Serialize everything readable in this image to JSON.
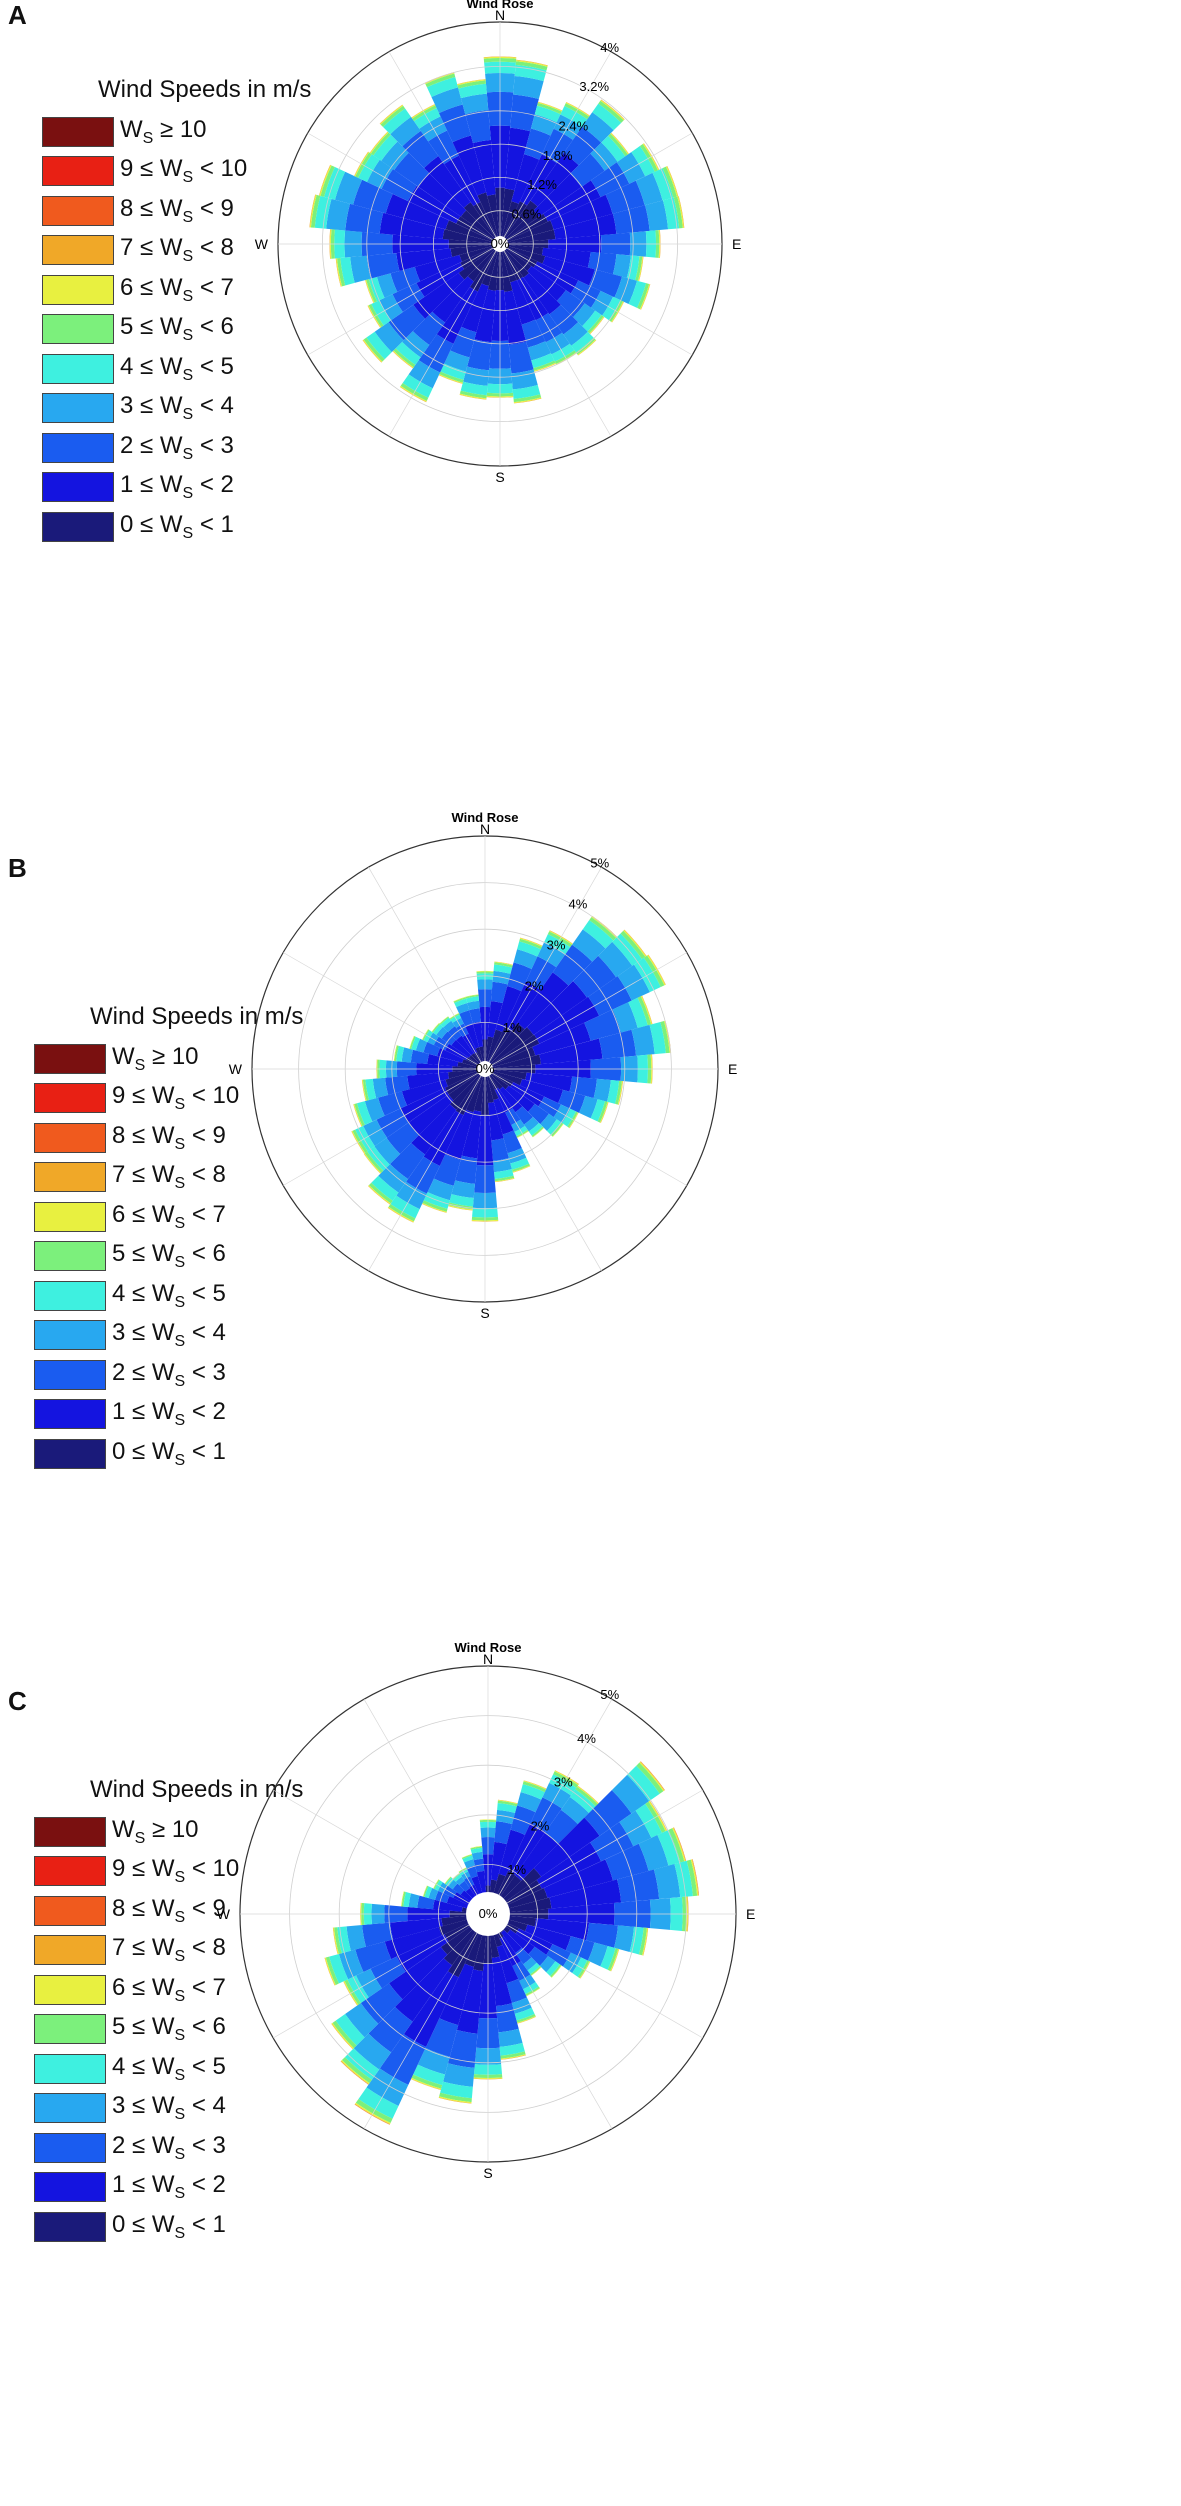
{
  "legend": {
    "title": "Wind Speeds in m/s",
    "colors": [
      "#1a1a7a",
      "#1414e0",
      "#1a5cf0",
      "#28a8f0",
      "#3ef0e0",
      "#7cf07c",
      "#e8f040",
      "#f0a828",
      "#f05a1e",
      "#e82014",
      "#7a1010"
    ],
    "items": [
      {
        "pre": "W",
        "sub": "S",
        "post": " ≥ 10"
      },
      {
        "pre": "9 ≤ W",
        "sub": "S",
        "post": " < 10"
      },
      {
        "pre": "8 ≤ W",
        "sub": "S",
        "post": " < 9"
      },
      {
        "pre": "7 ≤ W",
        "sub": "S",
        "post": " < 8"
      },
      {
        "pre": "6 ≤ W",
        "sub": "S",
        "post": " < 7"
      },
      {
        "pre": "5 ≤ W",
        "sub": "S",
        "post": " < 6"
      },
      {
        "pre": "4 ≤ W",
        "sub": "S",
        "post": " < 5"
      },
      {
        "pre": "3 ≤ W",
        "sub": "S",
        "post": " < 4"
      },
      {
        "pre": "2 ≤ W",
        "sub": "S",
        "post": " < 3"
      },
      {
        "pre": "1 ≤ W",
        "sub": "S",
        "post": " < 2"
      },
      {
        "pre": "0 ≤ W",
        "sub": "S",
        "post": " < 1"
      }
    ]
  },
  "directions": [
    "N",
    "E",
    "S",
    "W"
  ],
  "chart_data": [
    {
      "panel": "A",
      "type": "polar-stacked-bar",
      "title": "Wind Rose",
      "radial_max": 4,
      "ring_values": [
        0.6,
        1.2,
        1.8,
        2.4,
        3.2,
        4
      ],
      "ring_labels": [
        "0.6%",
        "1.2%",
        "1.8%",
        "2.4%",
        "3.2%",
        "4%"
      ],
      "center_label": "0%",
      "peaks": [
        {
          "dir": 0,
          "total": 3.2
        },
        {
          "dir": 40,
          "total": 3.0
        },
        {
          "dir": 70,
          "total": 3.4
        },
        {
          "dir": 110,
          "total": 2.6
        },
        {
          "dir": 160,
          "total": 2.6
        },
        {
          "dir": 190,
          "total": 3.0
        },
        {
          "dir": 215,
          "total": 3.0
        },
        {
          "dir": 240,
          "total": 2.4
        },
        {
          "dir": 285,
          "total": 3.4
        },
        {
          "dir": 320,
          "total": 3.2
        }
      ],
      "base_total": 2.2
    },
    {
      "panel": "B",
      "type": "polar-stacked-bar",
      "title": "Wind Rose",
      "radial_max": 5,
      "ring_values": [
        1,
        2,
        3,
        4,
        5
      ],
      "ring_labels": [
        "1%",
        "2%",
        "3%",
        "4%",
        "5%"
      ],
      "center_label": "0%",
      "peaks": [
        {
          "dir": 50,
          "total": 4.3
        },
        {
          "dir": 80,
          "total": 3.9
        },
        {
          "dir": 110,
          "total": 2.4
        },
        {
          "dir": 215,
          "total": 3.9
        },
        {
          "dir": 200,
          "total": 3.6
        },
        {
          "dir": 245,
          "total": 2.8
        }
      ],
      "base_total": 1.4
    },
    {
      "panel": "C",
      "type": "polar-stacked-bar",
      "title": "Wind Rose",
      "radial_max": 5,
      "ring_values": [
        1,
        2,
        3,
        4,
        5
      ],
      "ring_labels": [
        "1%",
        "2%",
        "3%",
        "4%",
        "5%"
      ],
      "center_label": "0%",
      "peaks": [
        {
          "dir": 60,
          "total": 4.3
        },
        {
          "dir": 85,
          "total": 4.1
        },
        {
          "dir": 40,
          "total": 3.2
        },
        {
          "dir": 215,
          "total": 4.6
        },
        {
          "dir": 240,
          "total": 3.6
        },
        {
          "dir": 195,
          "total": 3.8
        }
      ],
      "base_total": 1.0
    }
  ]
}
